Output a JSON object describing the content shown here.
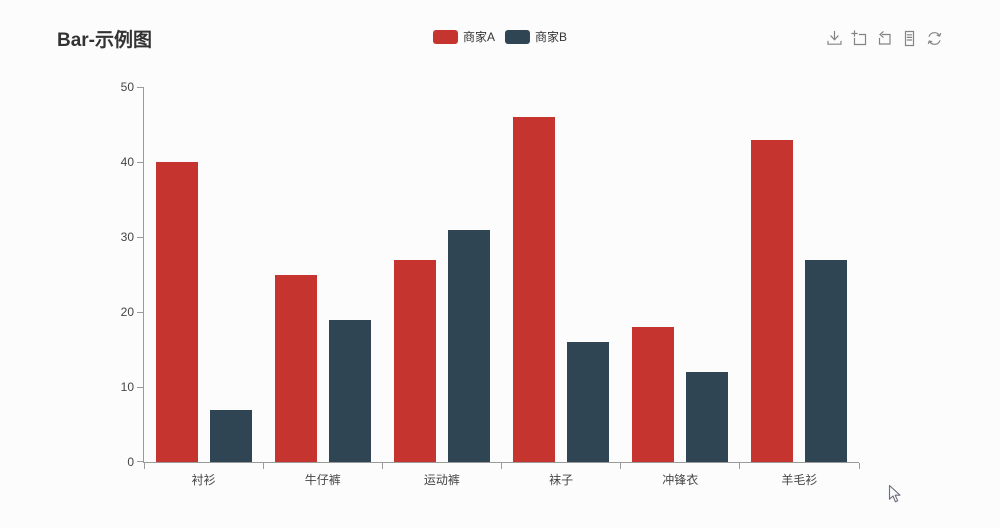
{
  "page": {
    "title": "Bar-示例图",
    "background": "#fcfcfc"
  },
  "legend": {
    "items": [
      {
        "label": "商家A",
        "color": "#c5342e"
      },
      {
        "label": "商家B",
        "color": "#2f4554"
      }
    ]
  },
  "toolbox": {
    "color": "#848484",
    "icons": [
      {
        "name": "save-as-image-icon"
      },
      {
        "name": "data-zoom-icon"
      },
      {
        "name": "data-zoom-reset-icon"
      },
      {
        "name": "data-view-icon"
      },
      {
        "name": "restore-icon"
      }
    ]
  },
  "chart_data": {
    "type": "bar",
    "title": "Bar-示例图",
    "categories": [
      "衬衫",
      "牛仔裤",
      "运动裤",
      "袜子",
      "冲锋衣",
      "羊毛衫"
    ],
    "series": [
      {
        "name": "商家A",
        "color": "#c5342e",
        "values": [
          40,
          25,
          27,
          46,
          18,
          43
        ]
      },
      {
        "name": "商家B",
        "color": "#2f4554",
        "values": [
          7,
          19,
          31,
          16,
          12,
          27
        ]
      }
    ],
    "xlabel": "",
    "ylabel": "",
    "ylim": [
      0,
      50
    ],
    "y_ticks": [
      0,
      10,
      20,
      30,
      40,
      50
    ],
    "grid": false,
    "legend_position": "top-center",
    "axis_color": "#9a9a9a",
    "label_color": "#454545"
  }
}
